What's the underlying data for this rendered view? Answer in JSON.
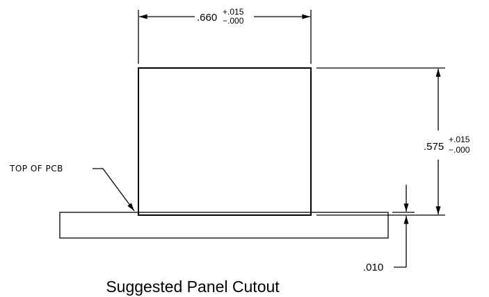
{
  "drawing": {
    "caption": "Suggested Panel Cutout",
    "width_dim": {
      "nominal": ".660",
      "tol_plus": "+.015",
      "tol_minus": "−.000"
    },
    "height_dim": {
      "nominal": ".575",
      "tol_plus": "+.015",
      "tol_minus": "−.000"
    },
    "gap_dim": {
      "value": ".010"
    },
    "callout": {
      "label": "TOP OF PCB"
    }
  }
}
